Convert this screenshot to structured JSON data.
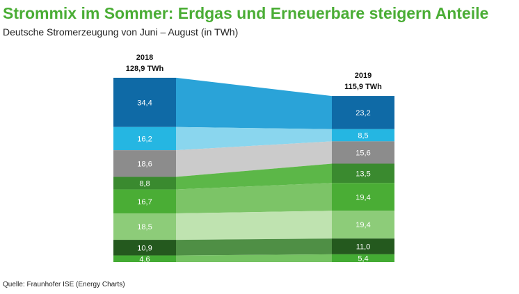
{
  "header": {
    "title": "Strommix im Sommer: Erdgas und Erneuerbare steigern Anteile",
    "subtitle": "Deutsche Stromerzeugung von Juni – August (in TWh)"
  },
  "footer": {
    "source": "Quelle: Fraunhofer ISE (Energy Charts)"
  },
  "chart_data": {
    "type": "bar",
    "orientation": "stacked-vertical-with-connecting-flows",
    "categories": [
      "2018",
      "2019"
    ],
    "totals": [
      "128,9 TWh",
      "115,9 TWh"
    ],
    "series": [
      {
        "values": [
          34.4,
          23.2
        ],
        "labels": [
          "34,4",
          "23,2"
        ],
        "color": "#0f6aa6",
        "flow_color": "#2aa3d8"
      },
      {
        "values": [
          16.2,
          8.5
        ],
        "labels": [
          "16,2",
          "8,5"
        ],
        "color": "#25b6e2",
        "flow_color": "#8ad6ee"
      },
      {
        "values": [
          18.6,
          15.6
        ],
        "labels": [
          "18,6",
          "15,6"
        ],
        "color": "#8c8c8c",
        "flow_color": "#cbcbcb"
      },
      {
        "values": [
          8.8,
          13.5
        ],
        "labels": [
          "8,8",
          "13,5"
        ],
        "color": "#3a8a2f",
        "flow_color": "#5cb748"
      },
      {
        "values": [
          16.7,
          19.4
        ],
        "labels": [
          "16,7",
          "19,4"
        ],
        "color": "#4aad35",
        "flow_color": "#7cc467"
      },
      {
        "values": [
          18.5,
          19.4
        ],
        "labels": [
          "18,5",
          "19,4"
        ],
        "color": "#8dcc79",
        "flow_color": "#bfe3b0"
      },
      {
        "values": [
          10.9,
          11.0
        ],
        "labels": [
          "10,9",
          "11,0"
        ],
        "color": "#24591e",
        "flow_color": "#4f8f45"
      },
      {
        "values": [
          4.6,
          5.4
        ],
        "labels": [
          "4,6",
          "5,4"
        ],
        "color": "#43ab33",
        "flow_color": "#75c262"
      }
    ]
  }
}
